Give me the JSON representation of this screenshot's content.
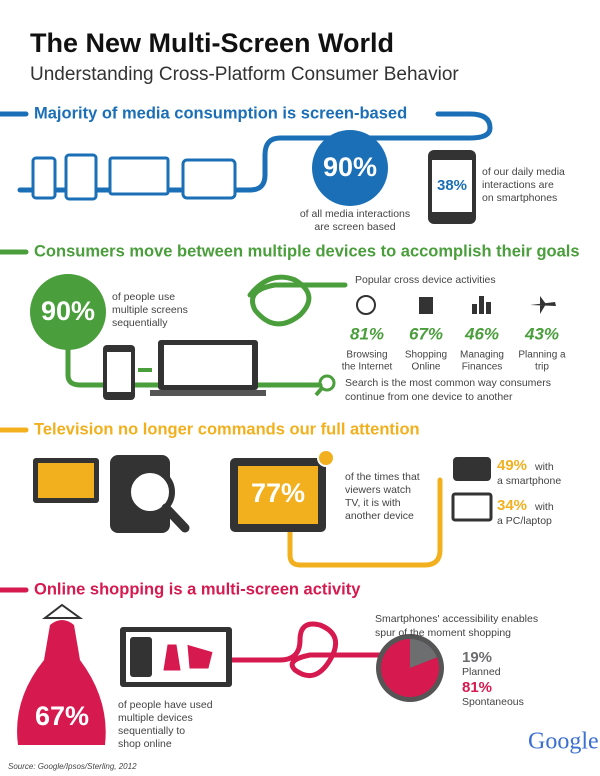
{
  "header": {
    "title": "The New Multi-Screen World",
    "subtitle": "Understanding Cross-Platform Consumer Behavior"
  },
  "sections": [
    {
      "heading": "Majority of media consumption is screen-based",
      "stat": "90%",
      "caption": [
        "of all media interactions",
        "are screen based"
      ],
      "phone_stat": "38%",
      "phone_caption": [
        "of our daily media",
        "interactions are",
        "on smartphones"
      ]
    },
    {
      "heading": "Consumers move between multiple devices to accomplish their goals",
      "stat": "90%",
      "caption": [
        "of people use",
        "multiple screens",
        "sequentially"
      ],
      "activities_title": "Popular cross device activities",
      "activities": [
        {
          "stat": "81%",
          "label": [
            "Browsing",
            "the Internet"
          ]
        },
        {
          "stat": "67%",
          "label": [
            "Shopping",
            "Online"
          ]
        },
        {
          "stat": "46%",
          "label": [
            "Managing",
            "Finances"
          ]
        },
        {
          "stat": "43%",
          "label": [
            "Planning a",
            "trip"
          ]
        }
      ],
      "search_note": [
        "Search is the most common way consumers",
        "continue from one device to another"
      ]
    },
    {
      "heading": "Television no longer commands our full attention",
      "stat": "77%",
      "caption": [
        "of the times that",
        "viewers watch",
        "TV, it is with",
        "another device"
      ],
      "devices": [
        {
          "stat": "49%",
          "label": [
            "with",
            "a smartphone"
          ]
        },
        {
          "stat": "34%",
          "label": [
            "with",
            "a PC/laptop"
          ]
        }
      ]
    },
    {
      "heading": "Online shopping is a multi-screen activity",
      "stat": "67%",
      "caption": [
        "of people have used",
        "multiple devices",
        "sequentially to",
        "shop online"
      ],
      "note": [
        "Smartphones' accessibility enables",
        "spur of the moment shopping"
      ],
      "pie": {
        "type": "pie",
        "values": [
          19,
          81
        ],
        "value_labels": [
          "19%",
          "81%"
        ],
        "labels": [
          "Planned",
          "Spontaneous"
        ],
        "colors": [
          "#6d6e70",
          "#d6194f"
        ]
      }
    }
  ],
  "footer": {
    "source": "Source: Google/Ipsos/Sterling, 2012",
    "logo": "Google"
  }
}
